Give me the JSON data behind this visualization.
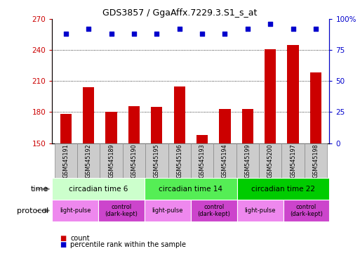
{
  "title": "GDS3857 / GgaAffx.7229.3.S1_s_at",
  "samples": [
    "GSM545191",
    "GSM545192",
    "GSM545189",
    "GSM545190",
    "GSM545195",
    "GSM545196",
    "GSM545193",
    "GSM545194",
    "GSM545199",
    "GSM545200",
    "GSM545197",
    "GSM545198"
  ],
  "counts": [
    178,
    204,
    180,
    186,
    185,
    205,
    158,
    183,
    183,
    241,
    245,
    218
  ],
  "percentile_ranks": [
    88,
    92,
    88,
    88,
    88,
    92,
    88,
    88,
    92,
    96,
    92,
    92
  ],
  "ylim_left": [
    150,
    270
  ],
  "ylim_right": [
    0,
    100
  ],
  "yticks_left": [
    150,
    180,
    210,
    240,
    270
  ],
  "yticks_right": [
    0,
    25,
    50,
    75,
    100
  ],
  "bar_color": "#cc0000",
  "dot_color": "#0000cc",
  "bar_width": 0.5,
  "time_groups": [
    {
      "label": "circadian time 6",
      "start": 0,
      "end": 4,
      "color": "#ccffcc"
    },
    {
      "label": "circadian time 14",
      "start": 4,
      "end": 8,
      "color": "#55ee55"
    },
    {
      "label": "circadian time 22",
      "start": 8,
      "end": 12,
      "color": "#00cc00"
    }
  ],
  "protocol_groups": [
    {
      "label": "light-pulse",
      "start": 0,
      "end": 2,
      "color": "#ee88ee"
    },
    {
      "label": "control\n(dark-kept)",
      "start": 2,
      "end": 4,
      "color": "#cc44cc"
    },
    {
      "label": "light-pulse",
      "start": 4,
      "end": 6,
      "color": "#ee88ee"
    },
    {
      "label": "control\n(dark-kept)",
      "start": 6,
      "end": 8,
      "color": "#cc44cc"
    },
    {
      "label": "light-pulse",
      "start": 8,
      "end": 10,
      "color": "#ee88ee"
    },
    {
      "label": "control\n(dark-kept)",
      "start": 10,
      "end": 12,
      "color": "#cc44cc"
    }
  ],
  "left_axis_color": "#cc0000",
  "right_axis_color": "#0000cc",
  "grid_color": "#000000",
  "sample_bg": "#cccccc",
  "sample_edge": "#888888"
}
